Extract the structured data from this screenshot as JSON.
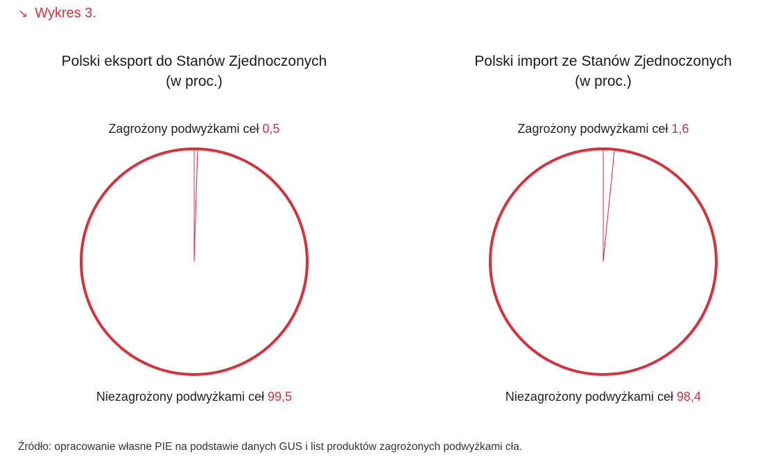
{
  "header": {
    "arrow_icon": "arrow-down-right-icon",
    "label": "Wykres 3."
  },
  "accent_color": "#d9303b",
  "chart_data": [
    {
      "type": "pie",
      "title_line1": "Polski eksport do Stanów Zjednoczonych",
      "title_line2": "(w proc.)",
      "slices": [
        {
          "label": "Zagrożony podwyżkami ceł",
          "value": 0.5,
          "value_text": "0,5"
        },
        {
          "label": "Niezagrożony podwyżkami ceł",
          "value": 99.5,
          "value_text": "99,5"
        }
      ]
    },
    {
      "type": "pie",
      "title_line1": "Polski import ze Stanów Zjednoczonych",
      "title_line2": "(w proc.)",
      "slices": [
        {
          "label": "Zagrożony podwyżkami ceł",
          "value": 1.6,
          "value_text": "1,6"
        },
        {
          "label": "Niezagrożony podwyżkami ceł",
          "value": 98.4,
          "value_text": "98,4"
        }
      ]
    }
  ],
  "source": "Źródło: opracowanie własne PIE na podstawie danych GUS i list produktów zagrożonych podwyżkami cła."
}
